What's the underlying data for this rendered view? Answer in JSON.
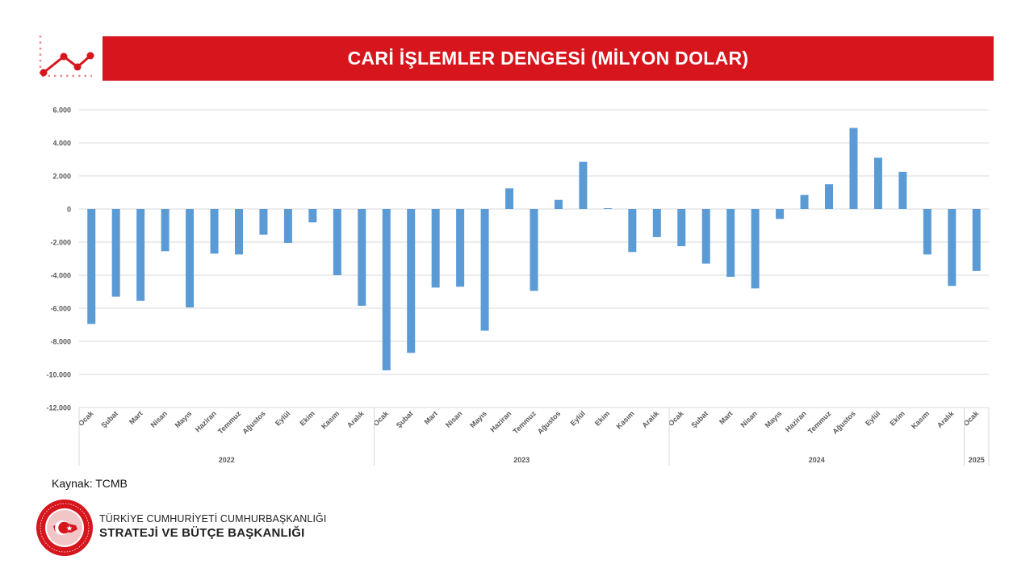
{
  "header": {
    "title": "CARİ İŞLEMLER DENGESİ (MİLYON DOLAR)"
  },
  "footer": {
    "source": "Kaynak: TCMB",
    "org_line1": "TÜRKİYE CUMHURİYETİ CUMHURBAŞKANLIĞI",
    "org_line2": "STRATEJİ VE BÜTÇE BAŞKANLIĞI",
    "logo_ring_text": "T.C. CUMHURBAŞKANLIĞI STRATEJİ VE BÜTÇE BAŞKANLIĞI"
  },
  "colors": {
    "title_bar": "#d7151d",
    "bar": "#5b9bd5",
    "grid": "#d9d9d9",
    "axis_text": "#595959"
  },
  "chart_data": {
    "type": "bar",
    "title": "",
    "xlabel": "",
    "ylabel": "",
    "ylim": [
      -12000,
      6000
    ],
    "ytick_step": 2000,
    "ytick_labels": [
      "6.000",
      "4.000",
      "2.000",
      "0",
      "-2.000",
      "-4.000",
      "-6.000",
      "-8.000",
      "-10.000",
      "-12.000"
    ],
    "grid": true,
    "categories": [
      "Ocak",
      "Şubat",
      "Mart",
      "Nisan",
      "Mayıs",
      "Haziran",
      "Temmuz",
      "Ağustos",
      "Eylül",
      "Ekim",
      "Kasım",
      "Aralık",
      "Ocak",
      "Şubat",
      "Mart",
      "Nisan",
      "Mayıs",
      "Haziran",
      "Temmuz",
      "Ağustos",
      "Eylül",
      "Ekim",
      "Kasım",
      "Aralık",
      "Ocak",
      "Şubat",
      "Mart",
      "Nisan",
      "Mayıs",
      "Haziran",
      "Temmuz",
      "Ağustos",
      "Eylül",
      "Ekim",
      "Kasım",
      "Aralık",
      "Ocak"
    ],
    "groups": [
      {
        "label": "2022",
        "count": 12
      },
      {
        "label": "2023",
        "count": 12
      },
      {
        "label": "2024",
        "count": 12
      },
      {
        "label": "2025",
        "count": 1
      }
    ],
    "series": [
      {
        "values": [
          -6950,
          -5300,
          -5550,
          -2550,
          -5950,
          -2700,
          -2750,
          -1550,
          -2050,
          -800,
          -4000,
          -5850,
          -9750,
          -8700,
          -4750,
          -4700,
          -7350,
          1250,
          -4950,
          550,
          2850,
          50,
          -2600,
          -1700,
          -2250,
          -3300,
          -4100,
          -4800,
          -600,
          850,
          1500,
          4900,
          3100,
          2250,
          -2750,
          -4650,
          -3750
        ]
      }
    ]
  }
}
